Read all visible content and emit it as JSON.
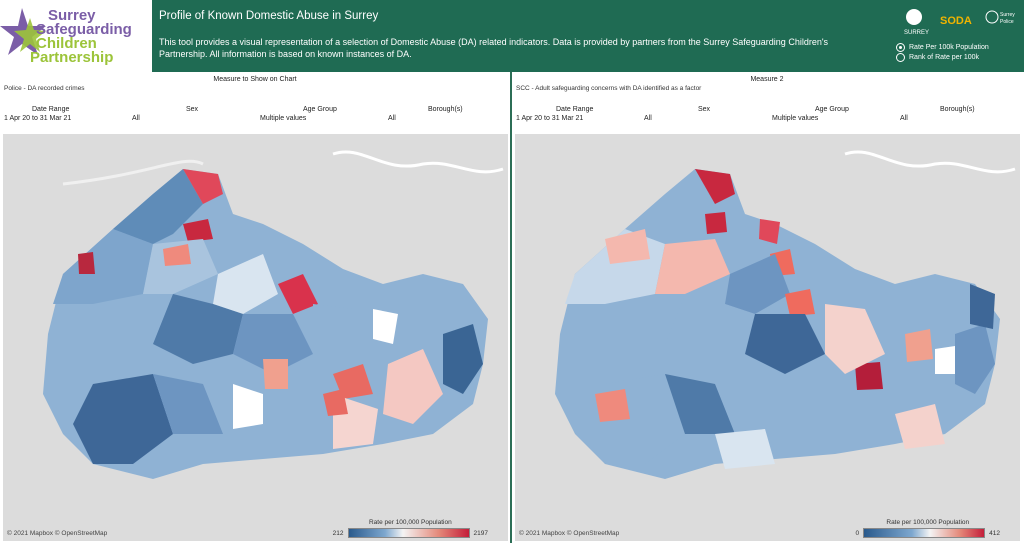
{
  "logo": {
    "line1": "Surrey",
    "line2": "Safeguarding",
    "line3": "Children",
    "line4": "Partnership"
  },
  "banner": {
    "title": "Profile of Known Domestic Abuse in Surrey",
    "description": "This tool provides a visual representation of a selection of Domestic Abuse (DA) related indicators.  Data is provided by partners from the Surrey Safeguarding Children's Partnership.  All information is based on known instances of DA.",
    "partners": [
      "SURREY",
      "SODA",
      "Surrey Police"
    ],
    "radio_options": [
      {
        "label": "Rate Per 100k Population",
        "selected": true
      },
      {
        "label": "Rank of Rate per 100k",
        "selected": false
      }
    ]
  },
  "filters": {
    "headers": [
      "Date Range",
      "Sex",
      "Age Group",
      "Borough(s)"
    ],
    "values": [
      "1 Apr 20 to 31 Mar 21",
      "All",
      "Multiple values",
      "All"
    ]
  },
  "left": {
    "title": "Measure to Show on Chart",
    "measure": "Police - DA recorded crimes",
    "attribution": "© 2021 Mapbox © OpenStreetMap",
    "legend_title": "Rate per 100,000 Population",
    "legend_min": "212",
    "legend_max": "2197"
  },
  "right": {
    "title": "Measure 2",
    "measure": "SCC - Adult safeguarding concerns with DA identified as a factor",
    "attribution": "© 2021 Mapbox © OpenStreetMap",
    "legend_title": "Rate per 100,000 Population",
    "legend_min": "0",
    "legend_max": "412"
  },
  "colors": {
    "header": "#1f6b53",
    "low": "#2a5a8c",
    "mid": "#f4f4f4",
    "high": "#c41e3a"
  }
}
